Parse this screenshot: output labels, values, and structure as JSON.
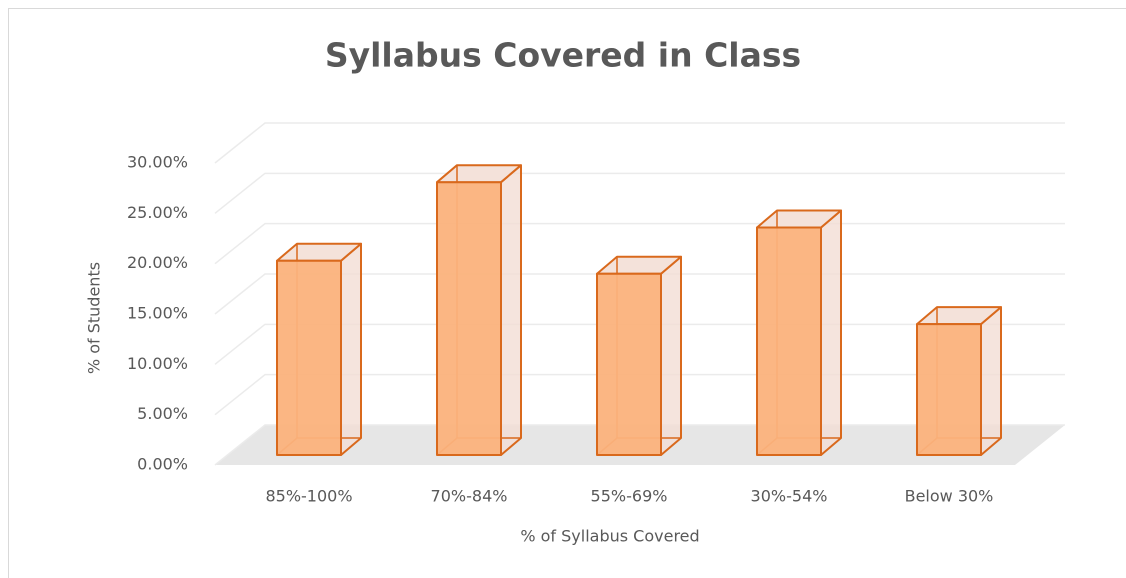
{
  "chart_data": {
    "type": "bar3d",
    "title": "Syllabus Covered in Class",
    "xlabel": "% of Syllabus Covered",
    "ylabel": "% of Students",
    "categories": [
      "85%-100%",
      "70%-84%",
      "55%-69%",
      "30%-54%",
      "Below 30%"
    ],
    "values": [
      19.3,
      27.1,
      18.0,
      22.6,
      13.0
    ],
    "color": "#fbb27c",
    "edge_color": "#d9691c",
    "ylim": [
      0,
      30
    ],
    "yticks": [
      {
        "value": 0,
        "label": "0.00%"
      },
      {
        "value": 5,
        "label": "5.00%"
      },
      {
        "value": 10,
        "label": "10.00%"
      },
      {
        "value": 15,
        "label": "15.00%"
      },
      {
        "value": 20,
        "label": "20.00%"
      },
      {
        "value": 25,
        "label": "25.00%"
      },
      {
        "value": 30,
        "label": "30.00%"
      }
    ],
    "grid": true
  }
}
